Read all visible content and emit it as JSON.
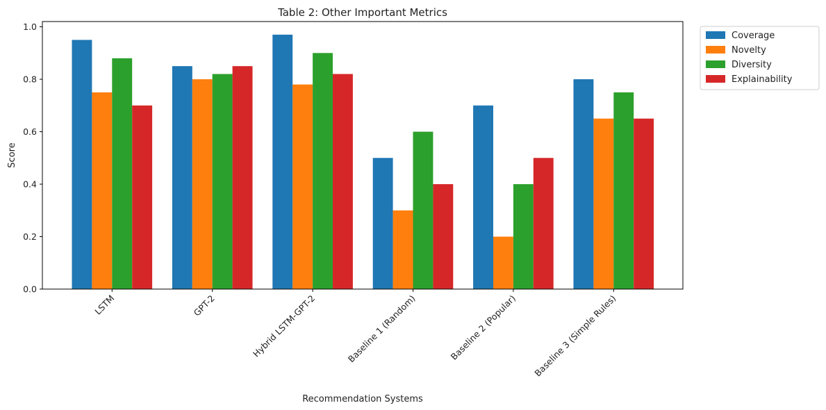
{
  "chart_data": {
    "type": "bar",
    "title": "Table 2: Other Important Metrics",
    "xlabel": "Recommendation Systems",
    "ylabel": "Score",
    "ylim": [
      0,
      1.02
    ],
    "yticks": [
      "0.0",
      "0.2",
      "0.4",
      "0.6",
      "0.8",
      "1.0"
    ],
    "categories": [
      "LSTM",
      "GPT-2",
      "Hybrid LSTM-GPT-2",
      "Baseline 1 (Random)",
      "Baseline 2 (Popular)",
      "Baseline 3 (Simple Rules)"
    ],
    "series": [
      {
        "name": "Coverage",
        "color": "#1f77b4",
        "values": [
          0.95,
          0.85,
          0.97,
          0.5,
          0.7,
          0.8
        ]
      },
      {
        "name": "Novelty",
        "color": "#ff7f0e",
        "values": [
          0.75,
          0.8,
          0.78,
          0.3,
          0.2,
          0.65
        ]
      },
      {
        "name": "Diversity",
        "color": "#2ca02c",
        "values": [
          0.88,
          0.82,
          0.9,
          0.6,
          0.4,
          0.75
        ]
      },
      {
        "name": "Explainability",
        "color": "#d62728",
        "values": [
          0.7,
          0.85,
          0.82,
          0.4,
          0.5,
          0.65
        ]
      }
    ],
    "grid": false,
    "legend_position": "outside-top-right"
  }
}
